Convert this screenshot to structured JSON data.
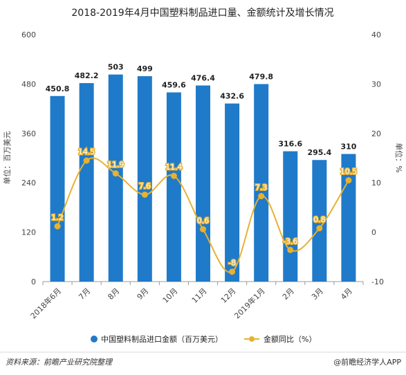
{
  "chart_data": {
    "type": "bar",
    "title": "2018-2019年4月中国塑料制品进口量、金额统计及增长情况",
    "categories": [
      "2018年6月",
      "7月",
      "8月",
      "9月",
      "10月",
      "11月",
      "12月",
      "2019年1月",
      "2月",
      "3月",
      "4月"
    ],
    "series": [
      {
        "name": "中国塑料制品进口金额（百万美元）",
        "type": "bar",
        "axis": "left",
        "color": "#1f7ac9",
        "values": [
          450.8,
          482.2,
          503,
          499,
          459.6,
          476.4,
          432.6,
          479.8,
          316.6,
          295.4,
          310
        ]
      },
      {
        "name": "金额同比（%）",
        "type": "line",
        "axis": "right",
        "color": "#e8b130",
        "values": [
          1.2,
          14.5,
          11.9,
          7.6,
          11.4,
          0.6,
          -8,
          7.3,
          -3.6,
          0.8,
          10.5
        ]
      }
    ],
    "ylabel": "单位：百万美元",
    "y2label": "单位：%",
    "ylim": [
      0,
      600
    ],
    "y2lim": [
      -10,
      40
    ],
    "yticks": [
      "0",
      "120",
      "240",
      "360",
      "480",
      "600"
    ],
    "y2ticks": [
      "-10",
      "0",
      "10",
      "20",
      "30",
      "40"
    ],
    "grid": false,
    "legend_position": "bottom"
  },
  "footer": {
    "source": "资料来源：前瞻产业研究院整理",
    "brand": "@前瞻经济学人APP"
  }
}
